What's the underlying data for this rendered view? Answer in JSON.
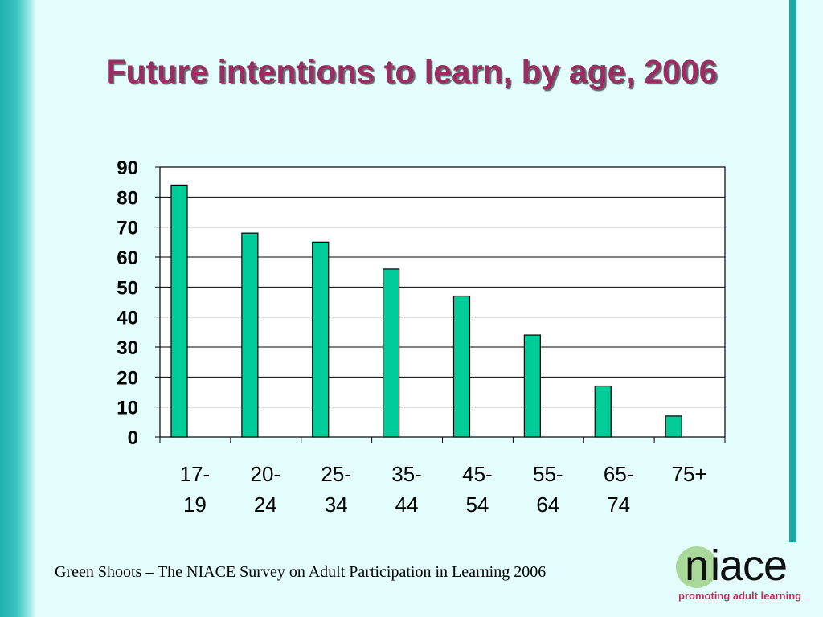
{
  "slide": {
    "title": "Future intentions to learn, by age, 2006",
    "footer": "Green Shoots – The NIACE Survey on Adult Participation in Learning 2006"
  },
  "logo": {
    "letter": "n",
    "rest": "iace",
    "tagline": "promoting adult learning"
  },
  "colors": {
    "bar": "#00cc99",
    "title": "#9c2d63",
    "accent": "#1ea8a6"
  },
  "chart_data": {
    "type": "bar",
    "title": "Future intentions to learn, by age, 2006",
    "xlabel": "",
    "ylabel": "",
    "categories": [
      [
        "17-",
        "19"
      ],
      [
        "20-",
        "24"
      ],
      [
        "25-",
        "34"
      ],
      [
        "35-",
        "44"
      ],
      [
        "45-",
        "54"
      ],
      [
        "55-",
        "64"
      ],
      [
        "65-",
        "74"
      ],
      [
        "75+"
      ]
    ],
    "values": [
      84,
      68,
      65,
      56,
      47,
      34,
      17,
      7
    ],
    "ylim": [
      0,
      90
    ],
    "yticks": [
      0,
      10,
      20,
      30,
      40,
      50,
      60,
      70,
      80,
      90
    ],
    "grid": true,
    "legend": "none"
  }
}
